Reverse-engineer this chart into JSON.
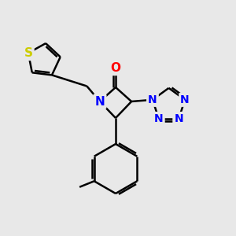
{
  "bg_color": "#e8e8e8",
  "bond_color": "#000000",
  "N_color": "#0000ff",
  "O_color": "#ff0000",
  "S_color": "#cccc00",
  "line_width": 1.8,
  "font_size_atom": 11,
  "figsize": [
    3.0,
    3.0
  ],
  "dpi": 100,
  "xlim": [
    0,
    10
  ],
  "ylim": [
    0,
    10
  ]
}
